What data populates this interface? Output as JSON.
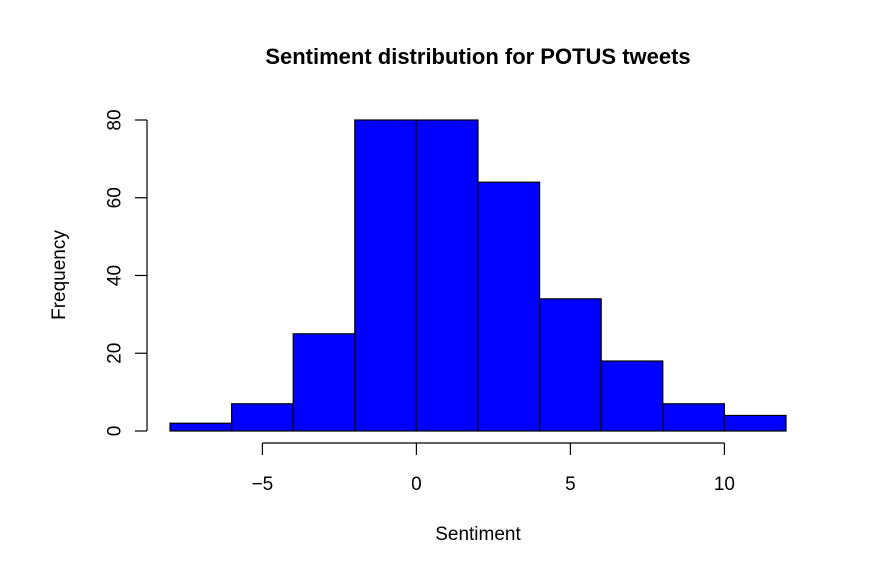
{
  "chart_data": {
    "type": "bar",
    "title": "Sentiment distribution for POTUS tweets",
    "xlabel": "Sentiment",
    "ylabel": "Frequency",
    "bins": [
      {
        "x0": -8,
        "x1": -6,
        "value": 2
      },
      {
        "x0": -6,
        "x1": -4,
        "value": 7
      },
      {
        "x0": -4,
        "x1": -2,
        "value": 25
      },
      {
        "x0": -2,
        "x1": 0,
        "value": 80
      },
      {
        "x0": 0,
        "x1": 2,
        "value": 80
      },
      {
        "x0": 2,
        "x1": 4,
        "value": 64
      },
      {
        "x0": 4,
        "x1": 6,
        "value": 34
      },
      {
        "x0": 6,
        "x1": 8,
        "value": 18
      },
      {
        "x0": 8,
        "x1": 10,
        "value": 7
      },
      {
        "x0": 10,
        "x1": 12,
        "value": 4
      }
    ],
    "x_ticks": [
      -5,
      0,
      5,
      10
    ],
    "x_tick_labels": [
      "−5",
      "0",
      "5",
      "10"
    ],
    "y_ticks": [
      0,
      20,
      40,
      60,
      80
    ],
    "y_tick_labels": [
      "0",
      "20",
      "40",
      "60",
      "80"
    ],
    "xlim": [
      -8,
      12
    ],
    "ylim": [
      0,
      80
    ],
    "bar_color": "#0000ff",
    "grid": false,
    "legend": "none"
  }
}
